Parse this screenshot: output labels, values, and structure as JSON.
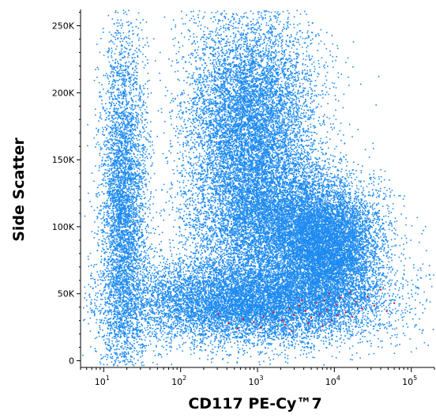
{
  "chart_data": {
    "type": "scatter",
    "title": "",
    "xlabel": "CD117 PE-Cy™7",
    "ylabel": "Side Scatter",
    "x_scale": "log",
    "xlim": [
      5,
      200000
    ],
    "ylim": [
      -5000,
      262144
    ],
    "grid": false,
    "legend": "none",
    "x_ticks": [
      {
        "value": 10,
        "base": "10",
        "exp": "1"
      },
      {
        "value": 100,
        "base": "10",
        "exp": "2"
      },
      {
        "value": 1000,
        "base": "10",
        "exp": "3"
      },
      {
        "value": 10000,
        "base": "10",
        "exp": "4"
      },
      {
        "value": 100000,
        "base": "10",
        "exp": "5"
      }
    ],
    "y_ticks": [
      {
        "value": 0,
        "label": "0"
      },
      {
        "value": 50000,
        "label": "50K"
      },
      {
        "value": 100000,
        "label": "100K"
      },
      {
        "value": 150000,
        "label": "150K"
      },
      {
        "value": 200000,
        "label": "200K"
      },
      {
        "value": 250000,
        "label": "250K"
      }
    ],
    "series": [
      {
        "color": "#1e8bf0",
        "populations": [
          {
            "x_log_center": 2.9,
            "x_log_spread": 0.42,
            "y_center": 175000,
            "y_spread": 42000,
            "count": 9000
          },
          {
            "x_log_center": 3.2,
            "x_log_spread": 0.55,
            "y_center": 105000,
            "y_spread": 22000,
            "count": 5500
          },
          {
            "x_log_center": 3.9,
            "x_log_spread": 0.35,
            "y_center": 85000,
            "y_spread": 22000,
            "count": 7000
          },
          {
            "x_log_center": 2.9,
            "x_log_spread": 0.85,
            "y_center": 45000,
            "y_spread": 16000,
            "count": 10000
          },
          {
            "x_log_center": 1.25,
            "x_log_spread": 0.15,
            "y_center": 110000,
            "y_spread": 70000,
            "count": 5000
          }
        ]
      },
      {
        "color": "#e8102a",
        "points": [
          [
            310,
            35000
          ],
          [
            420,
            28000
          ],
          [
            650,
            31000
          ],
          [
            900,
            29000
          ],
          [
            1200,
            33000
          ],
          [
            1600,
            36000
          ],
          [
            2100,
            30000
          ],
          [
            2600,
            39000
          ],
          [
            3000,
            34000
          ],
          [
            3500,
            41000
          ],
          [
            4200,
            37000
          ],
          [
            5000,
            32000
          ],
          [
            5800,
            43000
          ],
          [
            6500,
            35000
          ],
          [
            7400,
            45000
          ],
          [
            8000,
            38000
          ],
          [
            9200,
            30000
          ],
          [
            10500,
            42000
          ],
          [
            12000,
            47000
          ],
          [
            14000,
            36000
          ],
          [
            16000,
            51000
          ],
          [
            19000,
            44000
          ],
          [
            23000,
            39000
          ],
          [
            27000,
            48000
          ],
          [
            33000,
            41000
          ],
          [
            40000,
            53000
          ],
          [
            48000,
            37000
          ],
          [
            60000,
            43000
          ],
          [
            2300,
            27000
          ],
          [
            4600,
            28000
          ],
          [
            7000,
            26000
          ],
          [
            1100,
            25000
          ],
          [
            8600,
            50000
          ],
          [
            17000,
            33000
          ],
          [
            3800,
            45000
          ],
          [
            550,
            24000
          ],
          [
            2800,
            22000
          ],
          [
            11000,
            34000
          ]
        ]
      }
    ]
  }
}
